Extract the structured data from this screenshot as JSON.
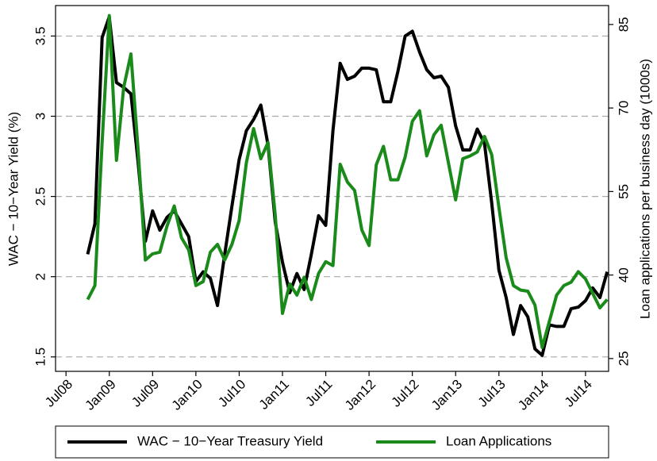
{
  "chart_data": {
    "type": "line",
    "categories": [
      "Jul08",
      null,
      null,
      null,
      null,
      null,
      "Jan09",
      null,
      null,
      null,
      null,
      null,
      "Jul09",
      null,
      null,
      null,
      null,
      null,
      "Jan10",
      null,
      null,
      null,
      null,
      null,
      "Jul10",
      null,
      null,
      null,
      null,
      null,
      "Jan11",
      null,
      null,
      null,
      null,
      null,
      "Jul11",
      null,
      null,
      null,
      null,
      null,
      "Jan12",
      null,
      null,
      null,
      null,
      null,
      "Jul12",
      null,
      null,
      null,
      null,
      null,
      "Jan13",
      null,
      null,
      null,
      null,
      null,
      "Jul13",
      null,
      null,
      null,
      null,
      null,
      "Jan14",
      null,
      null,
      null,
      null,
      null,
      "Jul14",
      null,
      null,
      null
    ],
    "series": [
      {
        "name": "WAC − 10−Year Treasury Yield",
        "color": "#000000",
        "axis": "y",
        "values": [
          null,
          null,
          null,
          2.14,
          2.33,
          3.49,
          3.62,
          3.21,
          3.18,
          3.14,
          2.71,
          2.22,
          2.41,
          2.29,
          2.37,
          2.41,
          2.33,
          2.25,
          1.97,
          2.03,
          1.99,
          1.82,
          2.14,
          2.44,
          2.73,
          2.91,
          2.98,
          3.07,
          2.82,
          2.34,
          2.09,
          1.9,
          2.02,
          1.92,
          2.14,
          2.38,
          2.32,
          2.91,
          3.33,
          3.23,
          3.25,
          3.3,
          3.3,
          3.29,
          3.09,
          3.09,
          3.28,
          3.5,
          3.53,
          3.4,
          3.29,
          3.24,
          3.25,
          3.18,
          2.94,
          2.79,
          2.79,
          2.92,
          2.83,
          2.46,
          2.04,
          1.87,
          1.64,
          1.82,
          1.75,
          1.55,
          1.51,
          1.7,
          1.69,
          1.69,
          1.8,
          1.81,
          1.85,
          1.93,
          1.87,
          2.03
        ]
      },
      {
        "name": "Loan Applications",
        "color": "#1a8a1a",
        "axis": "y2",
        "values": [
          null,
          null,
          null,
          35.6,
          38.1,
          63.8,
          86.6,
          60.6,
          73.7,
          79.7,
          62.4,
          42.7,
          43.8,
          44.1,
          48.8,
          52.4,
          46.7,
          44.5,
          38.1,
          38.8,
          44.1,
          45.5,
          42.7,
          45.5,
          49.8,
          60.2,
          66.3,
          60.9,
          63.8,
          50.7,
          33.1,
          38.4,
          36.4,
          39.6,
          35.6,
          40.3,
          42.4,
          41.7,
          59.9,
          56.7,
          55.2,
          48.1,
          45.3,
          59.8,
          63.1,
          57.1,
          57.1,
          61.2,
          67.6,
          69.5,
          61.4,
          65.2,
          66.9,
          60.2,
          53.5,
          60.9,
          61.4,
          62.1,
          64.9,
          61.6,
          52.1,
          43.1,
          38.1,
          37.3,
          37.1,
          34.6,
          27.0,
          31.7,
          36.4,
          38.1,
          38.7,
          40.6,
          39.3,
          36.7,
          34.1,
          35.6
        ]
      }
    ],
    "y_label": "WAC − 10−Year Yield (%)",
    "y2_label": "Loan applications per business day (1000s)",
    "ylim": [
      1.41,
      3.69
    ],
    "yticks": [
      1.5,
      2,
      2.5,
      3,
      3.5
    ],
    "y2lim": [
      22.7,
      88.4
    ],
    "y2ticks": [
      25,
      40,
      55,
      70,
      85
    ],
    "grid": true,
    "legend": "bottom"
  }
}
